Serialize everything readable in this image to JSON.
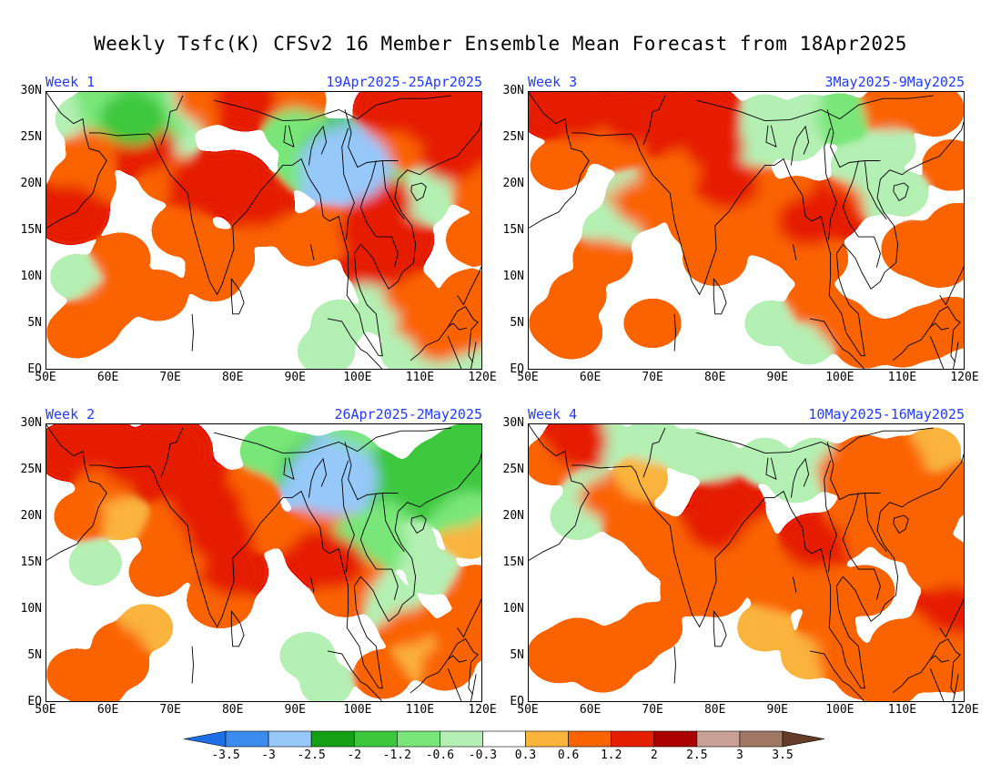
{
  "title": "Weekly Tsfc(K) CFSv2 16 Member Ensemble Mean Forecast from 18Apr2025",
  "panels": [
    {
      "week_label": "Week 1",
      "dates": "19Apr2025-25Apr2025"
    },
    {
      "week_label": "Week 3",
      "dates": "3May2025-9May2025"
    },
    {
      "week_label": "Week 2",
      "dates": "26Apr2025-2May2025"
    },
    {
      "week_label": "Week 4",
      "dates": "10May2025-16May2025"
    }
  ],
  "lat_ticks": [
    "30N",
    "25N",
    "20N",
    "15N",
    "10N",
    "5N",
    "EQ"
  ],
  "lon_ticks": [
    "50E",
    "60E",
    "70E",
    "80E",
    "90E",
    "100E",
    "110E",
    "120E"
  ],
  "colorbar": {
    "labels": [
      "-3.5",
      "-3",
      "-2.5",
      "-2",
      "-1.2",
      "-0.6",
      "-0.3",
      "0.3",
      "0.6",
      "1.2",
      "2",
      "2.5",
      "3",
      "3.5"
    ],
    "colors": [
      "#1e6ee6",
      "#3c8cf0",
      "#96c8fa",
      "#14a014",
      "#3cc83c",
      "#78e678",
      "#b4f0b4",
      "#ffffff",
      "#fab43c",
      "#fa6400",
      "#e61e00",
      "#aa0000",
      "#c8a096",
      "#a07864",
      "#643c28"
    ]
  },
  "chart_data": {
    "type": "heatmap",
    "variable": "Tsfc(K)",
    "domain": {
      "lon": [
        50,
        120
      ],
      "lat": [
        0,
        30
      ]
    },
    "panels": [
      {
        "name": "Week 1",
        "cells": [
          [
            57,
            5,
            0.9
          ],
          [
            55,
            4,
            0.7
          ],
          [
            60,
            7,
            0.7
          ],
          [
            62,
            12,
            0.7
          ],
          [
            68,
            8,
            0.7
          ],
          [
            72,
            15,
            0.8
          ],
          [
            75,
            20,
            1.5
          ],
          [
            80,
            20,
            1.6
          ],
          [
            84,
            18,
            1.3
          ],
          [
            78,
            12,
            1.1
          ],
          [
            77,
            10,
            0.6
          ],
          [
            85,
            16,
            0.7
          ],
          [
            54,
            17,
            1.5
          ],
          [
            56,
            20,
            1.0
          ],
          [
            58,
            24,
            0.7
          ],
          [
            66,
            24,
            1.3
          ],
          [
            70,
            21,
            0.9
          ],
          [
            92,
            14,
            0.8
          ],
          [
            96,
            15,
            1.0
          ],
          [
            102,
            15,
            1.3
          ],
          [
            104,
            12,
            1.7
          ],
          [
            106,
            14,
            1.5
          ],
          [
            104,
            18,
            1.2
          ],
          [
            108,
            8,
            0.7
          ],
          [
            110,
            5,
            0.6
          ],
          [
            113,
            3,
            0.8
          ],
          [
            116,
            4,
            1.1
          ],
          [
            118,
            8,
            0.7
          ],
          [
            119,
            14,
            0.7
          ],
          [
            119,
            20,
            0.8
          ],
          [
            118,
            25,
            1.4
          ],
          [
            112,
            27,
            1.5
          ],
          [
            115,
            23,
            1.3
          ],
          [
            108,
            24,
            0.7
          ],
          [
            104,
            24,
            0.7
          ],
          [
            118,
            28,
            1.6
          ],
          [
            105,
            28,
            1.2
          ],
          [
            90,
            29,
            0.8
          ],
          [
            82,
            29,
            1.3
          ],
          [
            75,
            29,
            0.8
          ],
          [
            60,
            28,
            -1.2
          ],
          [
            64,
            27,
            -1.5
          ],
          [
            68,
            26,
            -0.8
          ],
          [
            72,
            28,
            -0.6
          ],
          [
            56,
            27,
            -0.5
          ],
          [
            70,
            24,
            -0.4
          ],
          [
            66,
            28,
            -0.9
          ],
          [
            90,
            26,
            -0.8
          ],
          [
            95,
            22,
            -1.0
          ],
          [
            97,
            23,
            -2.0
          ],
          [
            98,
            22,
            -2.6
          ],
          [
            100,
            21,
            -1.0
          ],
          [
            92,
            22,
            -0.7
          ],
          [
            103,
            20,
            -0.8
          ],
          [
            110,
            18,
            -0.6
          ],
          [
            112,
            20,
            -0.5
          ],
          [
            95,
            2,
            -0.6
          ],
          [
            97,
            5,
            -0.5
          ],
          [
            105,
            6,
            -0.5
          ],
          [
            104,
            9,
            -0.5
          ],
          [
            108,
            2,
            -0.5
          ],
          [
            112,
            1,
            -0.4
          ],
          [
            118,
            1,
            -0.4
          ],
          [
            55,
            10,
            -0.4
          ]
        ]
      },
      {
        "name": "Week 3",
        "cells": [
          [
            55,
            5,
            0.7
          ],
          [
            57,
            4,
            0.8
          ],
          [
            58,
            8,
            0.6
          ],
          [
            62,
            12,
            0.7
          ],
          [
            68,
            18,
            0.9
          ],
          [
            72,
            20,
            0.9
          ],
          [
            76,
            22,
            1.0
          ],
          [
            80,
            24,
            1.2
          ],
          [
            82,
            20,
            1.3
          ],
          [
            78,
            16,
            1.1
          ],
          [
            80,
            12,
            0.9
          ],
          [
            84,
            17,
            0.7
          ],
          [
            75,
            25,
            0.9
          ],
          [
            72,
            26,
            1.3
          ],
          [
            75,
            27,
            1.6
          ],
          [
            78,
            27,
            1.8
          ],
          [
            67,
            27,
            1.3
          ],
          [
            58,
            28,
            1.6
          ],
          [
            54,
            28,
            1.2
          ],
          [
            55,
            22,
            0.6
          ],
          [
            60,
            25,
            0.7
          ],
          [
            65,
            24,
            0.6
          ],
          [
            92,
            14,
            0.9
          ],
          [
            95,
            16,
            1.3
          ],
          [
            96,
            12,
            1.0
          ],
          [
            98,
            17,
            1.2
          ],
          [
            93,
            18,
            0.8
          ],
          [
            100,
            18,
            0.7
          ],
          [
            96,
            7,
            0.6
          ],
          [
            100,
            5,
            0.7
          ],
          [
            104,
            3,
            0.8
          ],
          [
            110,
            3,
            0.7
          ],
          [
            114,
            4,
            0.9
          ],
          [
            118,
            5,
            0.8
          ],
          [
            112,
            13,
            1.0
          ],
          [
            116,
            12,
            1.1
          ],
          [
            119,
            15,
            0.9
          ],
          [
            118,
            22,
            0.7
          ],
          [
            115,
            28,
            0.8
          ],
          [
            108,
            28,
            0.7
          ],
          [
            85,
            20,
            0.7
          ],
          [
            88,
            15,
            0.8
          ],
          [
            70,
            5,
            0.6
          ],
          [
            88,
            27,
            -0.6
          ],
          [
            95,
            27,
            -0.6
          ],
          [
            100,
            27,
            -0.7
          ],
          [
            93,
            25,
            -0.5
          ],
          [
            86,
            24,
            -0.5
          ],
          [
            108,
            24,
            -0.4
          ],
          [
            103,
            22,
            -0.5
          ],
          [
            105,
            19,
            -0.4
          ],
          [
            110,
            19,
            -0.4
          ],
          [
            67,
            19,
            -0.5
          ],
          [
            66,
            17,
            -0.4
          ],
          [
            63,
            15,
            -0.4
          ],
          [
            110,
            10,
            -0.3
          ],
          [
            95,
            3,
            -0.4
          ],
          [
            86,
            3,
            -0.3
          ],
          [
            89,
            5,
            -0.4
          ]
        ]
      },
      {
        "name": "Week 2",
        "cells": [
          [
            55,
            3,
            0.7
          ],
          [
            58,
            2,
            0.8
          ],
          [
            62,
            4,
            0.6
          ],
          [
            66,
            8,
            0.5
          ],
          [
            68,
            14,
            0.6
          ],
          [
            70,
            18,
            0.8
          ],
          [
            72,
            20,
            1.0
          ],
          [
            74,
            23,
            1.4
          ],
          [
            76,
            21,
            1.7
          ],
          [
            78,
            18,
            1.5
          ],
          [
            80,
            14,
            1.2
          ],
          [
            78,
            11,
            1.0
          ],
          [
            74,
            16,
            0.9
          ],
          [
            82,
            22,
            1.1
          ],
          [
            84,
            19,
            0.8
          ],
          [
            64,
            26,
            1.3
          ],
          [
            68,
            25,
            1.6
          ],
          [
            70,
            27,
            1.8
          ],
          [
            58,
            28,
            1.5
          ],
          [
            54,
            27,
            1.2
          ],
          [
            60,
            24,
            1.0
          ],
          [
            56,
            20,
            0.6
          ],
          [
            62,
            20,
            0.5
          ],
          [
            92,
            18,
            0.8
          ],
          [
            94,
            16,
            1.2
          ],
          [
            96,
            15,
            1.4
          ],
          [
            95,
            20,
            0.8
          ],
          [
            98,
            12,
            0.8
          ],
          [
            100,
            14,
            0.6
          ],
          [
            108,
            8,
            0.6
          ],
          [
            110,
            5,
            0.5
          ],
          [
            114,
            4,
            0.7
          ],
          [
            117,
            7,
            0.9
          ],
          [
            119,
            12,
            0.7
          ],
          [
            118,
            18,
            0.5
          ],
          [
            104,
            3,
            0.6
          ],
          [
            62,
            6,
            0.6
          ],
          [
            86,
            27,
            -0.7
          ],
          [
            90,
            26,
            -1.0
          ],
          [
            93,
            25,
            -1.5
          ],
          [
            96,
            24,
            -2.6
          ],
          [
            98,
            26,
            -1.2
          ],
          [
            102,
            24,
            -1.3
          ],
          [
            106,
            22,
            -1.1
          ],
          [
            110,
            23,
            -1.3
          ],
          [
            114,
            25,
            -1.5
          ],
          [
            118,
            26,
            -2.0
          ],
          [
            116,
            21,
            -0.9
          ],
          [
            100,
            18,
            -0.8
          ],
          [
            104,
            17,
            -0.7
          ],
          [
            108,
            17,
            -0.6
          ],
          [
            103,
            12,
            -0.5
          ],
          [
            106,
            10,
            -0.4
          ],
          [
            112,
            14,
            -0.4
          ],
          [
            92,
            5,
            -0.5
          ],
          [
            95,
            2,
            -0.4
          ],
          [
            58,
            15,
            -0.4
          ],
          [
            60,
            18,
            -0.3
          ],
          [
            55,
            9,
            -0.3
          ]
        ]
      },
      {
        "name": "Week 4",
        "cells": [
          [
            55,
            5,
            0.9
          ],
          [
            58,
            6,
            1.0
          ],
          [
            62,
            4,
            0.9
          ],
          [
            66,
            6,
            0.8
          ],
          [
            70,
            8,
            0.7
          ],
          [
            73,
            16,
            0.8
          ],
          [
            76,
            17,
            0.9
          ],
          [
            78,
            14,
            0.9
          ],
          [
            80,
            19,
            1.2
          ],
          [
            82,
            21,
            1.4
          ],
          [
            84,
            18,
            1.0
          ],
          [
            80,
            12,
            0.8
          ],
          [
            76,
            12,
            0.7
          ],
          [
            86,
            16,
            0.7
          ],
          [
            62,
            22,
            0.6
          ],
          [
            66,
            20,
            0.6
          ],
          [
            70,
            18,
            0.6
          ],
          [
            68,
            24,
            0.5
          ],
          [
            58,
            28,
            1.2
          ],
          [
            54,
            26,
            0.6
          ],
          [
            92,
            14,
            0.9
          ],
          [
            95,
            15,
            1.0
          ],
          [
            96,
            17,
            1.3
          ],
          [
            98,
            12,
            0.8
          ],
          [
            100,
            18,
            0.7
          ],
          [
            104,
            20,
            1.0
          ],
          [
            108,
            22,
            1.0
          ],
          [
            110,
            18,
            0.8
          ],
          [
            112,
            23,
            0.7
          ],
          [
            114,
            20,
            0.8
          ],
          [
            116,
            15,
            1.0
          ],
          [
            118,
            10,
            1.2
          ],
          [
            119,
            13,
            1.1
          ],
          [
            116,
            8,
            0.8
          ],
          [
            114,
            4,
            0.9
          ],
          [
            110,
            6,
            0.9
          ],
          [
            118,
            4,
            0.9
          ],
          [
            104,
            3,
            0.7
          ],
          [
            108,
            2,
            0.6
          ],
          [
            100,
            5,
            0.6
          ],
          [
            95,
            5,
            0.5
          ],
          [
            88,
            8,
            0.5
          ],
          [
            90,
            12,
            0.6
          ],
          [
            98,
            8,
            0.6
          ],
          [
            104,
            12,
            0.7
          ],
          [
            100,
            25,
            0.6
          ],
          [
            104,
            26,
            0.7
          ],
          [
            110,
            26,
            0.6
          ],
          [
            115,
            27,
            0.5
          ],
          [
            119,
            23,
            0.8
          ],
          [
            58,
            20,
            -0.5
          ],
          [
            60,
            23,
            -0.4
          ],
          [
            56,
            17,
            -0.3
          ],
          [
            62,
            28,
            -0.5
          ],
          [
            70,
            28,
            -0.6
          ],
          [
            76,
            27,
            -0.4
          ],
          [
            80,
            26,
            -0.4
          ],
          [
            88,
            26,
            -0.4
          ],
          [
            93,
            24,
            -0.5
          ],
          [
            96,
            26,
            -0.4
          ],
          [
            100,
            28,
            -0.3
          ]
        ]
      }
    ]
  }
}
